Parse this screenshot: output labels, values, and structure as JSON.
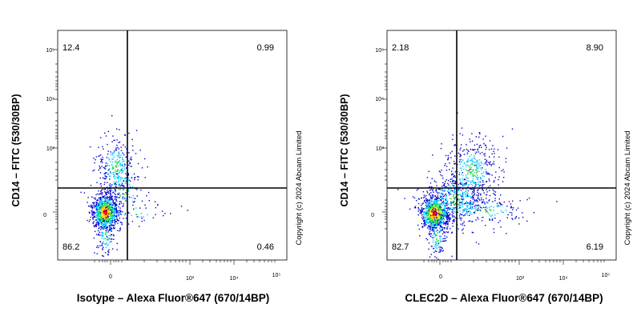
{
  "chart_data": [
    {
      "type": "scatter",
      "plot_style": "density dot plot with quadrant gates",
      "xlabel": "Isotype – Alexa Fluor®647 (670/14BP)",
      "ylabel": "CD14 – FITC (530/30BP)",
      "x_scale": "biexponential",
      "y_scale": "biexponential",
      "x_ticks": [
        "0",
        "10³",
        "10⁴",
        "10⁵"
      ],
      "y_ticks": [
        "0",
        "10³",
        "10⁴",
        "10⁵"
      ],
      "quadrant_gate": {
        "x": 150,
        "y": 250
      },
      "quadrants": {
        "top_left": "12.4",
        "top_right": "0.99",
        "bottom_left": "86.2",
        "bottom_right": "0.46"
      },
      "copyright": "Copyright (c) 2024 Abcam Limited"
    },
    {
      "type": "scatter",
      "plot_style": "density dot plot with quadrant gates",
      "xlabel": "CLEC2D – Alexa Fluor®647 (670/14BP)",
      "ylabel": "CD14 – FITC (530/30BP)",
      "x_scale": "biexponential",
      "y_scale": "biexponential",
      "x_ticks": [
        "0",
        "10³",
        "10⁴",
        "10⁵"
      ],
      "y_ticks": [
        "0",
        "10³",
        "10⁴",
        "10⁵"
      ],
      "quadrant_gate": {
        "x": 150,
        "y": 250
      },
      "quadrants": {
        "top_left": "2.18",
        "top_right": "8.90",
        "bottom_left": "82.7",
        "bottom_right": "6.19"
      },
      "copyright": "Copyright (c) 2024 Abcam Limited"
    }
  ],
  "colors": {
    "density_high": "#ff0000",
    "density_mid_high": "#ffd000",
    "density_mid": "#22dd44",
    "density_low": "#00c8ff",
    "density_sparse": "#0000cc",
    "axis": "#000000"
  }
}
